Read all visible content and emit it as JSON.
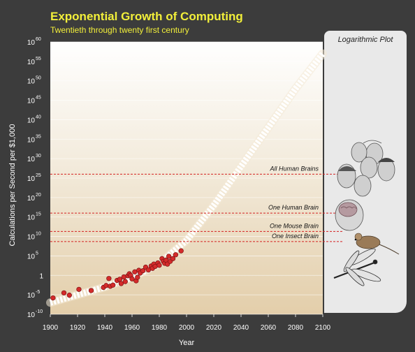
{
  "chart_data": {
    "type": "scatter",
    "title": "Exponential Growth of Computing",
    "subtitle": "Twentieth through twenty first century",
    "xlabel": "Year",
    "ylabel": "Calculations per Second per $1,000",
    "panel_label": "Logarithmic Plot",
    "y_scale": "log",
    "xlim": [
      1900,
      2100
    ],
    "ylim_exponent": [
      -10,
      60
    ],
    "x_ticks": [
      "1900",
      "1920",
      "1940",
      "1960",
      "1980",
      "2000",
      "2020",
      "2040",
      "2060",
      "2080",
      "2100"
    ],
    "y_ticks": [
      {
        "base": "10",
        "exp": "60"
      },
      {
        "base": "10",
        "exp": "55"
      },
      {
        "base": "10",
        "exp": "50"
      },
      {
        "base": "10",
        "exp": "45"
      },
      {
        "base": "10",
        "exp": "40"
      },
      {
        "base": "10",
        "exp": "35"
      },
      {
        "base": "10",
        "exp": "30"
      },
      {
        "base": "10",
        "exp": "25"
      },
      {
        "base": "10",
        "exp": "20"
      },
      {
        "base": "10",
        "exp": "15"
      },
      {
        "base": "10",
        "exp": "10"
      },
      {
        "base": "10",
        "exp": "5"
      },
      {
        "base": "1",
        "exp": ""
      },
      {
        "base": "10",
        "exp": "-5"
      },
      {
        "base": "10",
        "exp": "-10"
      }
    ],
    "reference_lines": [
      {
        "label": "All Human Brains",
        "exponent": 26
      },
      {
        "label": "One Human Brain",
        "exponent": 16
      },
      {
        "label": "One Mouse Brain",
        "exponent": 11.3
      },
      {
        "label": "One Insect Brain",
        "exponent": 8.7
      }
    ],
    "points": [
      {
        "x": 1902,
        "y_exp": -5.8
      },
      {
        "x": 1910,
        "y_exp": -4.5
      },
      {
        "x": 1914,
        "y_exp": -5.1
      },
      {
        "x": 1921,
        "y_exp": -3.6
      },
      {
        "x": 1930,
        "y_exp": -3.9
      },
      {
        "x": 1939,
        "y_exp": -3.1
      },
      {
        "x": 1941,
        "y_exp": -2.6
      },
      {
        "x": 1943,
        "y_exp": -0.8
      },
      {
        "x": 1944,
        "y_exp": -2.8
      },
      {
        "x": 1946,
        "y_exp": -2.5
      },
      {
        "x": 1949,
        "y_exp": -1.3
      },
      {
        "x": 1951,
        "y_exp": -1.0
      },
      {
        "x": 1952,
        "y_exp": -2.1
      },
      {
        "x": 1954,
        "y_exp": -0.4
      },
      {
        "x": 1955,
        "y_exp": -1.6
      },
      {
        "x": 1957,
        "y_exp": -0.1
      },
      {
        "x": 1958,
        "y_exp": 0.4
      },
      {
        "x": 1959,
        "y_exp": 0.0
      },
      {
        "x": 1960,
        "y_exp": -0.9
      },
      {
        "x": 1962,
        "y_exp": 0.9
      },
      {
        "x": 1963,
        "y_exp": -1.4
      },
      {
        "x": 1964,
        "y_exp": -0.5
      },
      {
        "x": 1965,
        "y_exp": 1.3
      },
      {
        "x": 1966,
        "y_exp": 0.6
      },
      {
        "x": 1968,
        "y_exp": 1.2
      },
      {
        "x": 1970,
        "y_exp": 2.1
      },
      {
        "x": 1972,
        "y_exp": 1.4
      },
      {
        "x": 1974,
        "y_exp": 2.4
      },
      {
        "x": 1975,
        "y_exp": 1.8
      },
      {
        "x": 1976,
        "y_exp": 2.9
      },
      {
        "x": 1977,
        "y_exp": 2.3
      },
      {
        "x": 1979,
        "y_exp": 3.2
      },
      {
        "x": 1980,
        "y_exp": 2.6
      },
      {
        "x": 1982,
        "y_exp": 4.3
      },
      {
        "x": 1983,
        "y_exp": 3.6
      },
      {
        "x": 1984,
        "y_exp": 3.1
      },
      {
        "x": 1985,
        "y_exp": 3.9
      },
      {
        "x": 1986,
        "y_exp": 2.9
      },
      {
        "x": 1987,
        "y_exp": 4.9
      },
      {
        "x": 1988,
        "y_exp": 3.6
      },
      {
        "x": 1990,
        "y_exp": 4.3
      },
      {
        "x": 1992,
        "y_exp": 5.3
      },
      {
        "x": 1996,
        "y_exp": 6.3
      }
    ],
    "trend": {
      "description": "projected trend band",
      "x": [
        1900,
        1940,
        1960,
        1980,
        2000,
        2020,
        2040,
        2060,
        2080,
        2100
      ],
      "y_exp": [
        -7,
        -3,
        -0.5,
        3,
        9,
        18,
        28,
        38,
        48,
        57
      ]
    },
    "colors": {
      "point": "#d42b2b",
      "reference_line": "#d42020",
      "title": "#f2ef3a"
    }
  }
}
